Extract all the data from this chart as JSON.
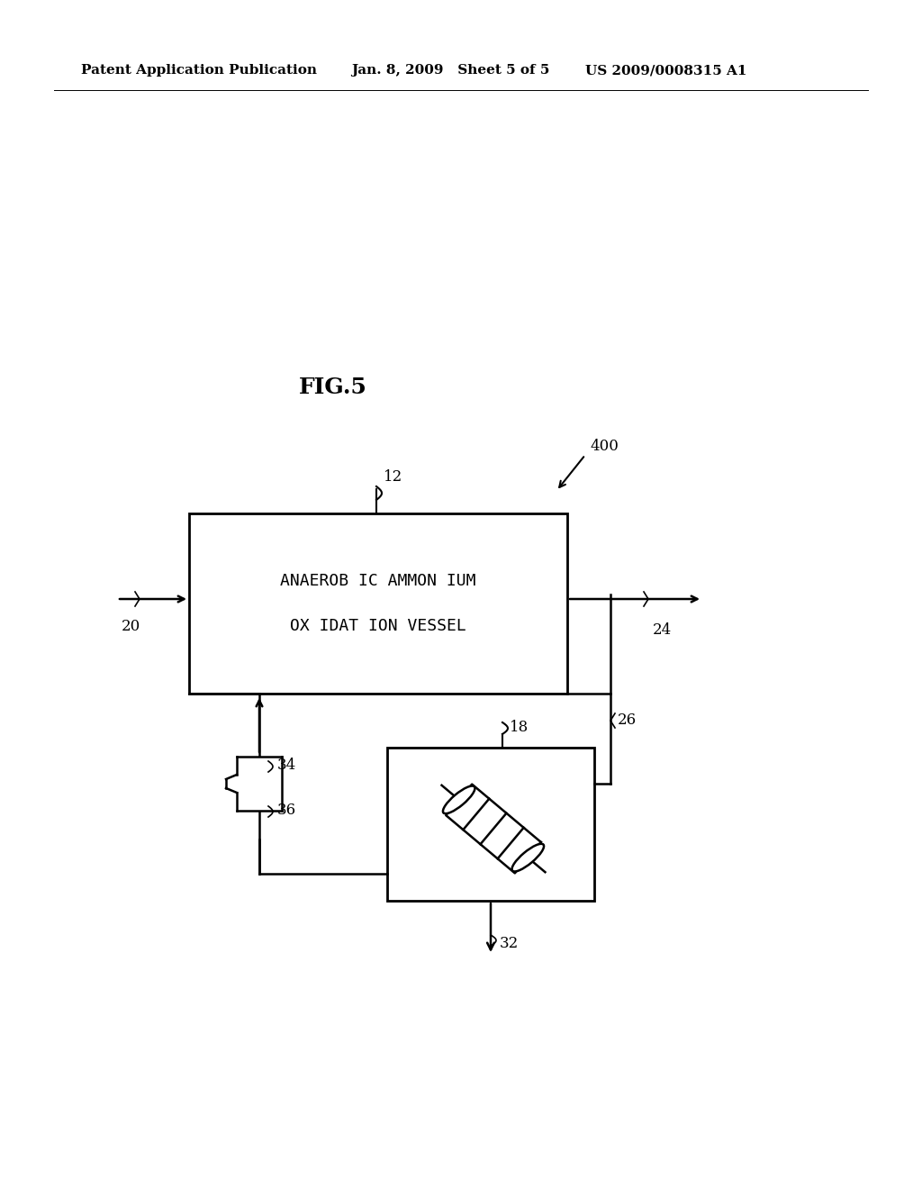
{
  "bg_color": "#ffffff",
  "fig_label": "FIG.5",
  "header_left": "Patent Application Publication",
  "header_mid": "Jan. 8, 2009   Sheet 5 of 5",
  "header_right": "US 2009/0008315 A1",
  "vessel_text_line1": "ANAEROB IC AMMON IUM",
  "vessel_text_line2": "OX IDAT ION VESSEL",
  "label_400": "400",
  "label_12": "12",
  "label_20": "20",
  "label_24": "24",
  "label_26": "26",
  "label_18": "18",
  "label_34": "34",
  "label_36": "36",
  "label_32": "32"
}
